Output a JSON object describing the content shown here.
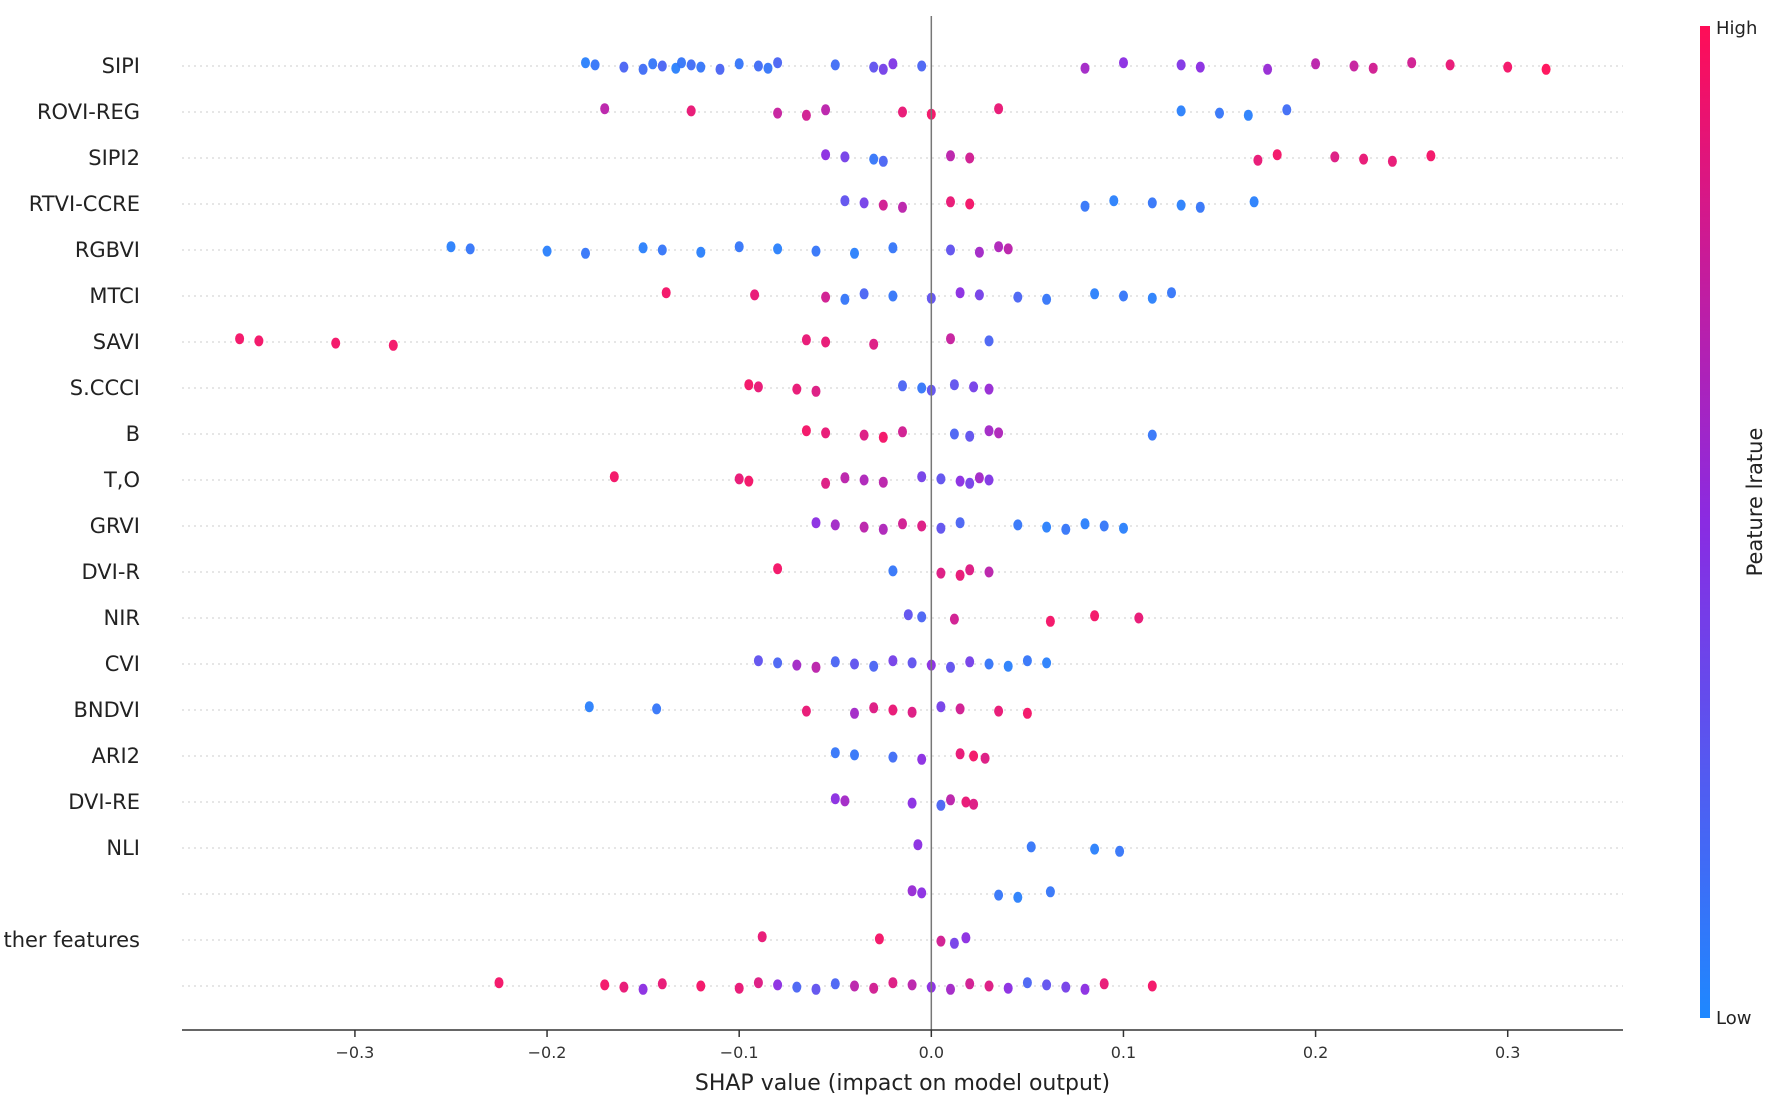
{
  "chart_data": {
    "type": "scatter",
    "subtype": "shap-beeswarm",
    "title": "",
    "xlabel": "SHAP value (impact on model output)",
    "ylabel": "",
    "xlim": [
      -0.39,
      0.36
    ],
    "x_ticks": [
      -0.3,
      -0.2,
      -0.1,
      0.0,
      0.1,
      0.2,
      0.3
    ],
    "x_tick_labels": [
      "−0.3",
      "−0.2",
      "−0.1",
      "0.0",
      "0.1",
      "0.2",
      "0.3"
    ],
    "grid": false,
    "colorbar": {
      "title": "Peature lratue",
      "high_label": "High",
      "low_label": "Low",
      "low_color": "#1e88ff",
      "mid_color": "#8a2be2",
      "high_color": "#ff0d57"
    },
    "features": [
      {
        "name": "SIPI",
        "points": [
          [
            -0.18,
            0.05
          ],
          [
            -0.175,
            0.1
          ],
          [
            -0.16,
            0.2
          ],
          [
            -0.15,
            0.15
          ],
          [
            -0.145,
            0.1
          ],
          [
            -0.14,
            0.2
          ],
          [
            -0.133,
            0.05
          ],
          [
            -0.13,
            0.1
          ],
          [
            -0.125,
            0.15
          ],
          [
            -0.12,
            0.1
          ],
          [
            -0.11,
            0.2
          ],
          [
            -0.1,
            0.1
          ],
          [
            -0.09,
            0.15
          ],
          [
            -0.085,
            0.1
          ],
          [
            -0.08,
            0.2
          ],
          [
            -0.05,
            0.15
          ],
          [
            -0.03,
            0.3
          ],
          [
            -0.025,
            0.4
          ],
          [
            -0.02,
            0.45
          ],
          [
            -0.005,
            0.2
          ],
          [
            0.08,
            0.6
          ],
          [
            0.1,
            0.5
          ],
          [
            0.13,
            0.45
          ],
          [
            0.14,
            0.5
          ],
          [
            0.175,
            0.55
          ],
          [
            0.2,
            0.7
          ],
          [
            0.22,
            0.75
          ],
          [
            0.23,
            0.8
          ],
          [
            0.25,
            0.8
          ],
          [
            0.27,
            0.9
          ],
          [
            0.3,
            0.95
          ],
          [
            0.32,
            1.0
          ]
        ]
      },
      {
        "name": "ROVI-REG",
        "points": [
          [
            -0.17,
            0.7
          ],
          [
            -0.125,
            0.9
          ],
          [
            -0.08,
            0.75
          ],
          [
            -0.065,
            0.8
          ],
          [
            -0.055,
            0.7
          ],
          [
            -0.015,
            0.9
          ],
          [
            0.0,
            0.95
          ],
          [
            0.035,
            0.9
          ],
          [
            0.13,
            0.05
          ],
          [
            0.15,
            0.1
          ],
          [
            0.165,
            0.05
          ],
          [
            0.185,
            0.15
          ]
        ]
      },
      {
        "name": "SIPI2",
        "points": [
          [
            -0.055,
            0.5
          ],
          [
            -0.045,
            0.4
          ],
          [
            -0.03,
            0.1
          ],
          [
            -0.025,
            0.2
          ],
          [
            0.01,
            0.7
          ],
          [
            0.02,
            0.8
          ],
          [
            0.17,
            0.9
          ],
          [
            0.18,
            0.95
          ],
          [
            0.21,
            0.85
          ],
          [
            0.225,
            0.9
          ],
          [
            0.24,
            0.9
          ],
          [
            0.26,
            0.95
          ]
        ]
      },
      {
        "name": "RTVI-CCRE",
        "points": [
          [
            -0.045,
            0.3
          ],
          [
            -0.035,
            0.4
          ],
          [
            -0.025,
            0.8
          ],
          [
            -0.015,
            0.7
          ],
          [
            0.01,
            0.9
          ],
          [
            0.02,
            0.95
          ],
          [
            0.08,
            0.1
          ],
          [
            0.095,
            0.05
          ],
          [
            0.115,
            0.1
          ],
          [
            0.13,
            0.05
          ],
          [
            0.14,
            0.1
          ],
          [
            0.168,
            0.05
          ]
        ]
      },
      {
        "name": "RGBVI",
        "points": [
          [
            -0.25,
            0.05
          ],
          [
            -0.24,
            0.1
          ],
          [
            -0.2,
            0.05
          ],
          [
            -0.18,
            0.1
          ],
          [
            -0.15,
            0.05
          ],
          [
            -0.14,
            0.1
          ],
          [
            -0.12,
            0.05
          ],
          [
            -0.1,
            0.1
          ],
          [
            -0.08,
            0.05
          ],
          [
            -0.06,
            0.1
          ],
          [
            -0.04,
            0.05
          ],
          [
            -0.02,
            0.1
          ],
          [
            0.01,
            0.3
          ],
          [
            0.025,
            0.6
          ],
          [
            0.035,
            0.65
          ],
          [
            0.04,
            0.7
          ]
        ]
      },
      {
        "name": "MTCI",
        "points": [
          [
            -0.138,
            0.95
          ],
          [
            -0.092,
            0.9
          ],
          [
            -0.055,
            0.8
          ],
          [
            -0.045,
            0.1
          ],
          [
            -0.035,
            0.2
          ],
          [
            -0.02,
            0.1
          ],
          [
            0.0,
            0.3
          ],
          [
            0.015,
            0.5
          ],
          [
            0.025,
            0.4
          ],
          [
            0.045,
            0.2
          ],
          [
            0.06,
            0.1
          ],
          [
            0.085,
            0.05
          ],
          [
            0.1,
            0.1
          ],
          [
            0.115,
            0.05
          ],
          [
            0.125,
            0.1
          ]
        ]
      },
      {
        "name": "SAVI",
        "points": [
          [
            -0.36,
            0.95
          ],
          [
            -0.35,
            0.95
          ],
          [
            -0.31,
            0.95
          ],
          [
            -0.28,
            0.95
          ],
          [
            -0.065,
            0.9
          ],
          [
            -0.055,
            0.9
          ],
          [
            -0.03,
            0.85
          ],
          [
            0.01,
            0.75
          ],
          [
            0.03,
            0.2
          ]
        ]
      },
      {
        "name": "S.CCCI",
        "points": [
          [
            -0.095,
            0.95
          ],
          [
            -0.09,
            0.9
          ],
          [
            -0.07,
            0.9
          ],
          [
            -0.06,
            0.85
          ],
          [
            -0.015,
            0.2
          ],
          [
            -0.005,
            0.1
          ],
          [
            0.0,
            0.3
          ],
          [
            0.012,
            0.3
          ],
          [
            0.022,
            0.4
          ],
          [
            0.03,
            0.55
          ]
        ]
      },
      {
        "name": "B",
        "points": [
          [
            -0.065,
            0.95
          ],
          [
            -0.055,
            0.9
          ],
          [
            -0.035,
            0.85
          ],
          [
            -0.025,
            0.95
          ],
          [
            -0.015,
            0.8
          ],
          [
            0.012,
            0.2
          ],
          [
            0.02,
            0.3
          ],
          [
            0.03,
            0.6
          ],
          [
            0.035,
            0.65
          ],
          [
            0.115,
            0.1
          ]
        ]
      },
      {
        "name": "T,O",
        "points": [
          [
            -0.165,
            0.95
          ],
          [
            -0.1,
            0.9
          ],
          [
            -0.095,
            0.95
          ],
          [
            -0.055,
            0.85
          ],
          [
            -0.045,
            0.7
          ],
          [
            -0.035,
            0.65
          ],
          [
            -0.025,
            0.7
          ],
          [
            -0.005,
            0.4
          ],
          [
            0.005,
            0.3
          ],
          [
            0.015,
            0.5
          ],
          [
            0.02,
            0.4
          ],
          [
            0.025,
            0.6
          ],
          [
            0.03,
            0.45
          ]
        ]
      },
      {
        "name": "GRVI",
        "points": [
          [
            -0.06,
            0.5
          ],
          [
            -0.05,
            0.6
          ],
          [
            -0.035,
            0.7
          ],
          [
            -0.025,
            0.65
          ],
          [
            -0.015,
            0.8
          ],
          [
            -0.005,
            0.85
          ],
          [
            0.005,
            0.3
          ],
          [
            0.015,
            0.2
          ],
          [
            0.045,
            0.1
          ],
          [
            0.06,
            0.05
          ],
          [
            0.07,
            0.1
          ],
          [
            0.08,
            0.05
          ],
          [
            0.09,
            0.1
          ],
          [
            0.1,
            0.05
          ]
        ]
      },
      {
        "name": "DVI-R",
        "points": [
          [
            -0.08,
            0.95
          ],
          [
            -0.02,
            0.1
          ],
          [
            0.005,
            0.85
          ],
          [
            0.015,
            0.9
          ],
          [
            0.02,
            0.85
          ],
          [
            0.03,
            0.7
          ]
        ]
      },
      {
        "name": "NIR",
        "points": [
          [
            -0.012,
            0.3
          ],
          [
            -0.005,
            0.2
          ],
          [
            0.012,
            0.8
          ],
          [
            0.062,
            0.95
          ],
          [
            0.085,
            0.95
          ],
          [
            0.108,
            0.9
          ]
        ]
      },
      {
        "name": "CVI",
        "points": [
          [
            -0.09,
            0.3
          ],
          [
            -0.08,
            0.2
          ],
          [
            -0.07,
            0.6
          ],
          [
            -0.06,
            0.7
          ],
          [
            -0.05,
            0.2
          ],
          [
            -0.04,
            0.3
          ],
          [
            -0.03,
            0.2
          ],
          [
            -0.02,
            0.4
          ],
          [
            -0.01,
            0.3
          ],
          [
            0.0,
            0.5
          ],
          [
            0.01,
            0.3
          ],
          [
            0.02,
            0.4
          ],
          [
            0.03,
            0.1
          ],
          [
            0.04,
            0.05
          ],
          [
            0.05,
            0.1
          ],
          [
            0.06,
            0.05
          ]
        ]
      },
      {
        "name": "BNDVI",
        "points": [
          [
            -0.178,
            0.05
          ],
          [
            -0.143,
            0.1
          ],
          [
            -0.065,
            0.9
          ],
          [
            -0.04,
            0.6
          ],
          [
            -0.03,
            0.85
          ],
          [
            -0.02,
            0.9
          ],
          [
            -0.01,
            0.85
          ],
          [
            0.005,
            0.4
          ],
          [
            0.015,
            0.8
          ],
          [
            0.035,
            0.9
          ],
          [
            0.05,
            0.95
          ]
        ]
      },
      {
        "name": "ARI2",
        "points": [
          [
            -0.05,
            0.1
          ],
          [
            -0.04,
            0.1
          ],
          [
            -0.02,
            0.15
          ],
          [
            -0.005,
            0.5
          ],
          [
            0.015,
            0.9
          ],
          [
            0.022,
            0.95
          ],
          [
            0.028,
            0.85
          ]
        ]
      },
      {
        "name": "DVI-RE",
        "points": [
          [
            -0.05,
            0.5
          ],
          [
            -0.045,
            0.6
          ],
          [
            -0.01,
            0.5
          ],
          [
            0.005,
            0.2
          ],
          [
            0.01,
            0.7
          ],
          [
            0.018,
            0.9
          ],
          [
            0.022,
            0.85
          ]
        ]
      },
      {
        "name": "NLI",
        "points": [
          [
            -0.007,
            0.5
          ],
          [
            0.052,
            0.1
          ],
          [
            0.085,
            0.05
          ],
          [
            0.098,
            0.1
          ]
        ]
      },
      {
        "name": "",
        "points": [
          [
            -0.01,
            0.55
          ],
          [
            -0.005,
            0.5
          ],
          [
            0.035,
            0.1
          ],
          [
            0.045,
            0.05
          ],
          [
            0.062,
            0.1
          ]
        ]
      },
      {
        "name": "ther features",
        "points": [
          [
            -0.088,
            0.9
          ],
          [
            -0.027,
            0.95
          ],
          [
            0.005,
            0.8
          ],
          [
            0.012,
            0.4
          ],
          [
            0.018,
            0.5
          ]
        ]
      },
      {
        "name": "",
        "points": [
          [
            -0.225,
            0.95
          ],
          [
            -0.17,
            0.95
          ],
          [
            -0.16,
            0.9
          ],
          [
            -0.15,
            0.5
          ],
          [
            -0.14,
            0.9
          ],
          [
            -0.12,
            0.95
          ],
          [
            -0.1,
            0.9
          ],
          [
            -0.09,
            0.85
          ],
          [
            -0.08,
            0.5
          ],
          [
            -0.07,
            0.2
          ],
          [
            -0.06,
            0.3
          ],
          [
            -0.05,
            0.2
          ],
          [
            -0.04,
            0.7
          ],
          [
            -0.03,
            0.8
          ],
          [
            -0.02,
            0.85
          ],
          [
            -0.01,
            0.7
          ],
          [
            0.0,
            0.5
          ],
          [
            0.01,
            0.6
          ],
          [
            0.02,
            0.8
          ],
          [
            0.03,
            0.85
          ],
          [
            0.04,
            0.5
          ],
          [
            0.05,
            0.2
          ],
          [
            0.06,
            0.3
          ],
          [
            0.07,
            0.4
          ],
          [
            0.08,
            0.5
          ],
          [
            0.09,
            0.9
          ],
          [
            0.115,
            0.95
          ]
        ]
      }
    ]
  }
}
